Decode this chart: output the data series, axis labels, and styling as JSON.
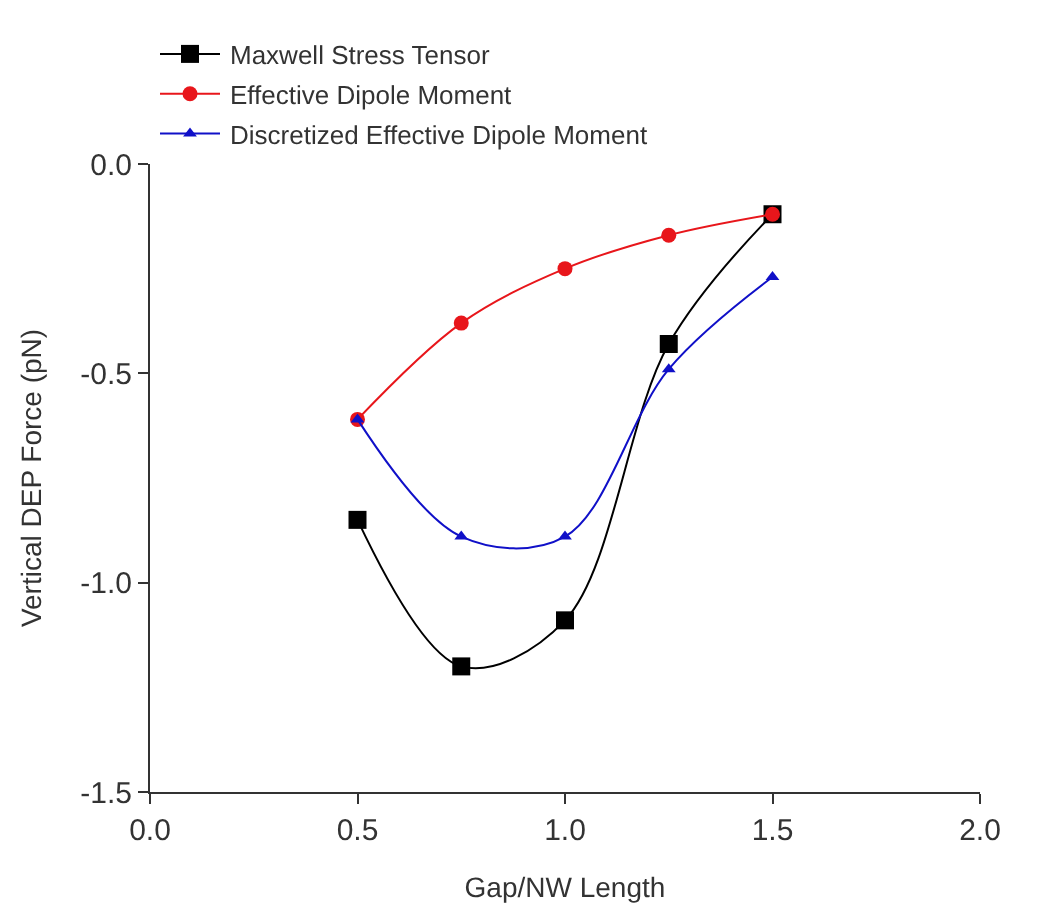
{
  "chart_data": {
    "type": "line",
    "xlabel": "Gap/NW Length",
    "ylabel": "Vertical DEP Force (pN)",
    "x": [
      0.5,
      0.75,
      1.0,
      1.25,
      1.5
    ],
    "series": [
      {
        "name": "Maxwell Stress Tensor",
        "color": "#000000",
        "marker": "square",
        "values": [
          -0.85,
          -1.2,
          -1.09,
          -0.43,
          -0.12
        ]
      },
      {
        "name": "Effective Dipole Moment",
        "color": "#e8161b",
        "marker": "circle",
        "values": [
          -0.61,
          -0.38,
          -0.25,
          -0.17,
          -0.12
        ]
      },
      {
        "name": "Discretized Effective Dipole Moment",
        "color": "#1010c8",
        "marker": "triangle",
        "values": [
          -0.61,
          -0.89,
          -0.89,
          -0.49,
          -0.27
        ]
      }
    ],
    "xlim": [
      0.0,
      2.0
    ],
    "xticks": [
      {
        "value": 0,
        "label": "0.0"
      },
      0.5,
      {
        "value": 1,
        "label": "1.0"
      },
      1.5,
      {
        "value": 2,
        "label": "2.0"
      }
    ],
    "ylim": [
      -1.5,
      0.0
    ],
    "yticks": [
      -1.5,
      {
        "value": -1,
        "label": "-1.0"
      },
      -0.5,
      {
        "value": 0,
        "label": "0.0"
      }
    ],
    "legend": "top left",
    "line_style": "solid"
  }
}
